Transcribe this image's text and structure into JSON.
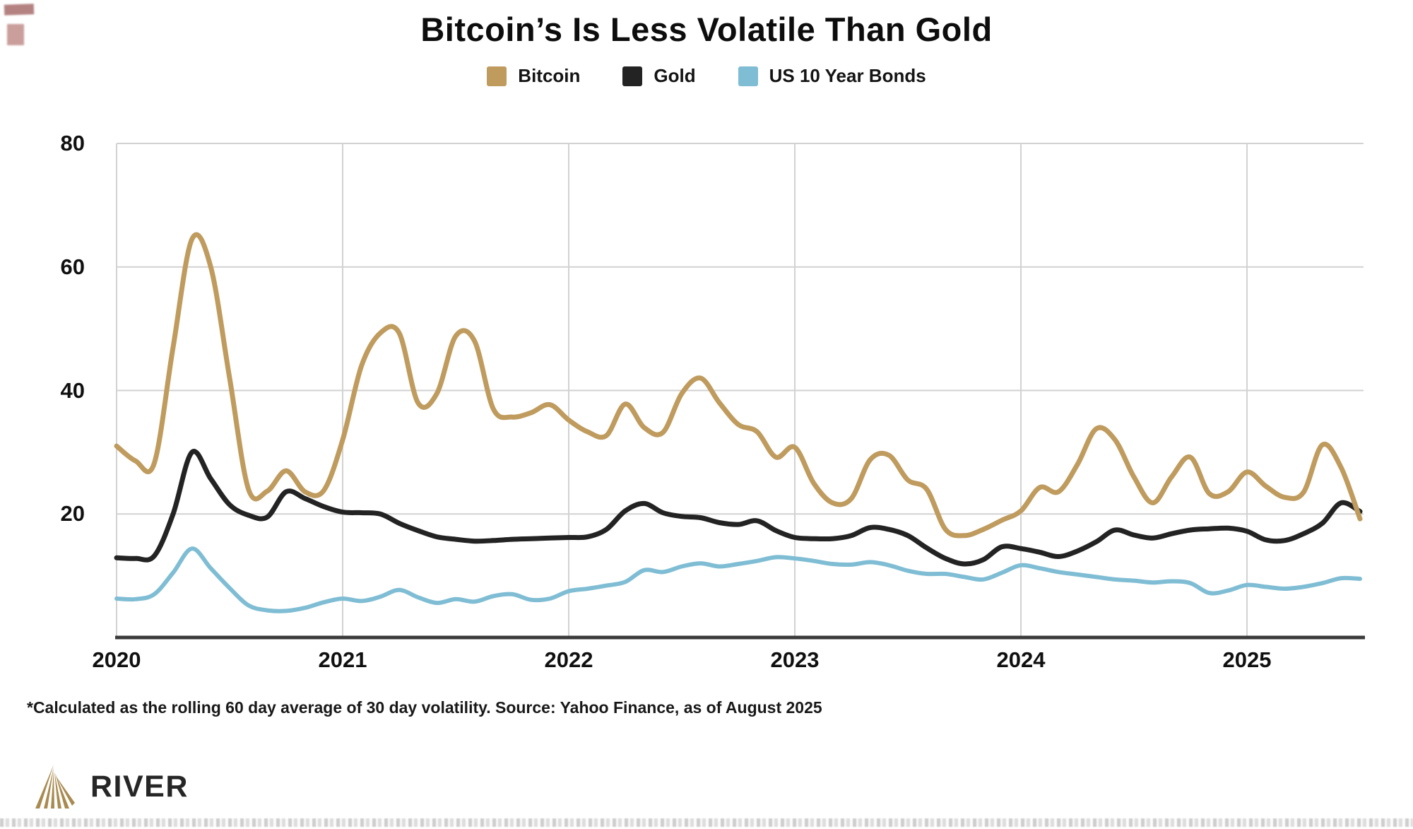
{
  "title": "Bitcoin’s Is Less Volatile Than Gold",
  "legend": [
    {
      "label": "Bitcoin",
      "color": "#bf9b5e"
    },
    {
      "label": "Gold",
      "color": "#232323"
    },
    {
      "label": "US 10 Year Bonds",
      "color": "#7fbdd4"
    }
  ],
  "footnote": "*Calculated as the rolling 60 day average of 30 day volatility. Source: Yahoo Finance, as of August 2025",
  "logo_text": "RIVER",
  "chart_data": {
    "type": "line",
    "title": "Bitcoin’s Is Less Volatile Than Gold",
    "xlabel": "",
    "ylabel": "",
    "x_unit": "monthly",
    "x_start_year": 2020,
    "x_end": "2025-07 (as of August 2025)",
    "x_ticks": [
      2020,
      2021,
      2022,
      2023,
      2024,
      2025
    ],
    "y_ticks": [
      20,
      40,
      60,
      80
    ],
    "ylim": [
      0,
      80
    ],
    "grid": true,
    "legend_position": "top",
    "series": [
      {
        "name": "US 10 Year Bonds",
        "color": "#7fbdd4",
        "stroke_width": 6,
        "values": [
          6.3,
          6.2,
          7.0,
          10.5,
          14.4,
          11.2,
          8.0,
          5.2,
          4.4,
          4.3,
          4.8,
          5.7,
          6.3,
          5.9,
          6.6,
          7.7,
          6.5,
          5.6,
          6.2,
          5.8,
          6.7,
          7.0,
          6.1,
          6.3,
          7.5,
          7.9,
          8.4,
          9.0,
          10.9,
          10.6,
          11.5,
          12.0,
          11.5,
          11.9,
          12.4,
          13.0,
          12.8,
          12.4,
          11.9,
          11.8,
          12.2,
          11.7,
          10.8,
          10.3,
          10.3,
          9.8,
          9.4,
          10.5,
          11.7,
          11.2,
          10.6,
          10.2,
          9.8,
          9.4,
          9.2,
          8.9,
          9.1,
          8.8,
          7.2,
          7.6,
          8.5,
          8.2,
          7.9,
          8.2,
          8.8,
          9.6,
          9.5
        ]
      },
      {
        "name": "Gold",
        "color": "#232323",
        "stroke_width": 7,
        "values": [
          12.9,
          12.8,
          13.2,
          20.0,
          30.0,
          25.7,
          21.5,
          19.8,
          19.5,
          23.6,
          22.5,
          21.2,
          20.3,
          20.2,
          20.0,
          18.5,
          17.3,
          16.3,
          15.9,
          15.6,
          15.7,
          15.9,
          16.0,
          16.1,
          16.2,
          16.3,
          17.5,
          20.5,
          21.7,
          20.2,
          19.6,
          19.4,
          18.6,
          18.3,
          18.9,
          17.3,
          16.2,
          16.0,
          16.0,
          16.5,
          17.8,
          17.5,
          16.5,
          14.5,
          12.8,
          11.9,
          12.6,
          14.7,
          14.4,
          13.8,
          13.1,
          14.0,
          15.5,
          17.4,
          16.6,
          16.1,
          16.8,
          17.4,
          17.6,
          17.7,
          17.2,
          15.8,
          15.7,
          16.8,
          18.5,
          21.8,
          20.4
        ]
      },
      {
        "name": "Bitcoin",
        "color": "#bf9b5e",
        "stroke_width": 7,
        "values": [
          31.0,
          28.6,
          28.2,
          47.0,
          64.5,
          60.0,
          42.0,
          24.0,
          23.7,
          27.0,
          23.6,
          23.8,
          32.0,
          44.0,
          49.3,
          49.3,
          38.0,
          39.5,
          48.8,
          48.0,
          37.0,
          35.7,
          36.4,
          37.7,
          35.2,
          33.3,
          32.7,
          37.8,
          34.0,
          33.2,
          39.5,
          42.0,
          38.0,
          34.5,
          33.3,
          29.2,
          30.8,
          25.0,
          21.8,
          22.5,
          28.8,
          29.5,
          25.5,
          24.0,
          17.5,
          16.5,
          17.5,
          19.0,
          20.5,
          24.3,
          23.6,
          28.0,
          33.8,
          32.0,
          26.0,
          21.8,
          26.0,
          29.2,
          23.3,
          23.6,
          26.8,
          24.5,
          22.7,
          23.5,
          31.2,
          27.5,
          19.2
        ]
      }
    ]
  }
}
